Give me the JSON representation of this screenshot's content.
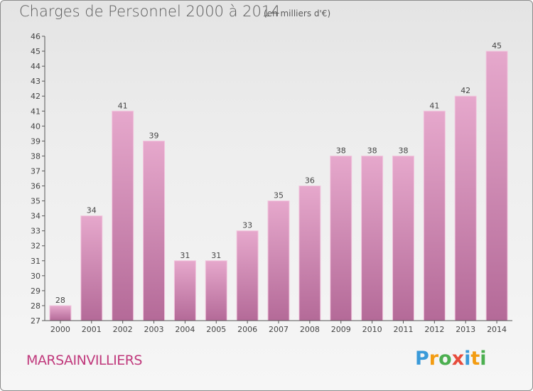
{
  "title": "Charges de Personnel 2000 à 2014",
  "subtitle": "(en milliers d'€)",
  "city": "MARSAINVILLIERS",
  "logo": {
    "letters": [
      "P",
      "r",
      "o",
      "x",
      "i",
      "t",
      "i"
    ],
    "colors": [
      "#3a9ad9",
      "#f39c12",
      "#4caf50",
      "#e74c3c",
      "#3a9ad9",
      "#f39c12",
      "#4caf50"
    ]
  },
  "colors": {
    "bar_top": "#e6a8cc",
    "bar_bottom": "#b46a98",
    "bar_edge": "#f2c6de",
    "city": "#c0397c"
  },
  "chart_data": {
    "type": "bar",
    "title": "Charges de Personnel 2000 à 2014",
    "subtitle": "(en milliers d'€)",
    "categories": [
      "2000",
      "2001",
      "2002",
      "2003",
      "2004",
      "2005",
      "2006",
      "2007",
      "2008",
      "2009",
      "2010",
      "2011",
      "2012",
      "2013",
      "2014"
    ],
    "values": [
      28,
      34,
      41,
      39,
      31,
      31,
      33,
      35,
      36,
      38,
      38,
      38,
      41,
      42,
      45
    ],
    "ylim": [
      27,
      46
    ],
    "yticks": [
      27,
      28,
      29,
      30,
      31,
      32,
      33,
      34,
      35,
      36,
      37,
      38,
      39,
      40,
      41,
      42,
      43,
      44,
      45,
      46
    ],
    "grid": false,
    "legend": "none"
  }
}
